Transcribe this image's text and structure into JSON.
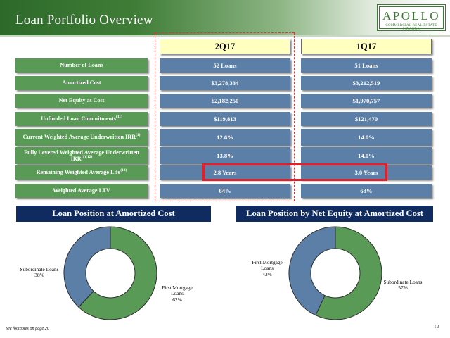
{
  "header": {
    "title": "Loan Portfolio Overview",
    "logo_name": "APOLLO",
    "logo_subtitle": "Commercial Real Estate Finance"
  },
  "columns": [
    "2Q17",
    "1Q17"
  ],
  "rows": [
    {
      "label": "Number of Loans",
      "values": [
        "52 Loans",
        "51 Loans"
      ]
    },
    {
      "label": "Amortized Cost",
      "values": [
        "$3,278,334",
        "$3,212,519"
      ]
    },
    {
      "label": "Net Equity at Cost",
      "values": [
        "$2,182,250",
        "$1,970,757"
      ]
    },
    {
      "label": "Unfunded Loan Commitments",
      "sup": "(11)",
      "values": [
        "$119,813",
        "$121,470"
      ]
    },
    {
      "label": "Current Weighted Average Underwritten IRR",
      "sup": "(1)",
      "values": [
        "12.6%",
        "14.0%"
      ]
    },
    {
      "label": "Fully Levered Weighted Average Underwritten IRR",
      "sup": "(1)(12)",
      "values": [
        "13.8%",
        "14.0%"
      ]
    },
    {
      "label": "Remaining Weighted Average Life",
      "sup": "(13)",
      "values": [
        "2.8 Years",
        "3.0 Years"
      ]
    },
    {
      "label": "Weighted Average LTV",
      "values": [
        "64%",
        "63%"
      ]
    }
  ],
  "charts": {
    "left_title": "Loan Position at Amortized Cost",
    "right_title": "Loan Position by Net Equity at Amortized Cost",
    "left_labels": {
      "sub_name": "Subordinate Loans",
      "sub_pct": "38%",
      "first_line1": "First Mortgage",
      "first_line2": "Loans",
      "first_pct": "62%"
    },
    "right_labels": {
      "first_line1": "First Mortgage",
      "first_line2": "Loans",
      "first_pct": "43%",
      "sub_name": "Subordinate Loans",
      "sub_pct": "57%"
    }
  },
  "chart_data": [
    {
      "type": "pie",
      "title": "Loan Position at Amortized Cost",
      "labels": [
        "First Mortgage Loans",
        "Subordinate Loans"
      ],
      "values": [
        62,
        38
      ],
      "colors": [
        "#5a9a57",
        "#5c7fa8"
      ]
    },
    {
      "type": "pie",
      "title": "Loan Position by Net Equity at Amortized Cost",
      "labels": [
        "Subordinate Loans",
        "First Mortgage Loans"
      ],
      "values": [
        57,
        43
      ],
      "colors": [
        "#5a9a57",
        "#5c7fa8"
      ]
    }
  ],
  "footer": {
    "footnote": "See footnotes on page 20",
    "page_number": "12"
  },
  "colors": {
    "header_green": "#3f7d37",
    "label_green": "#5a9a57",
    "cell_blue": "#5c7fa8",
    "col_header_yellow": "#ffffc0",
    "section_navy": "#0f2b5f",
    "highlight_red": "#e0202a"
  }
}
